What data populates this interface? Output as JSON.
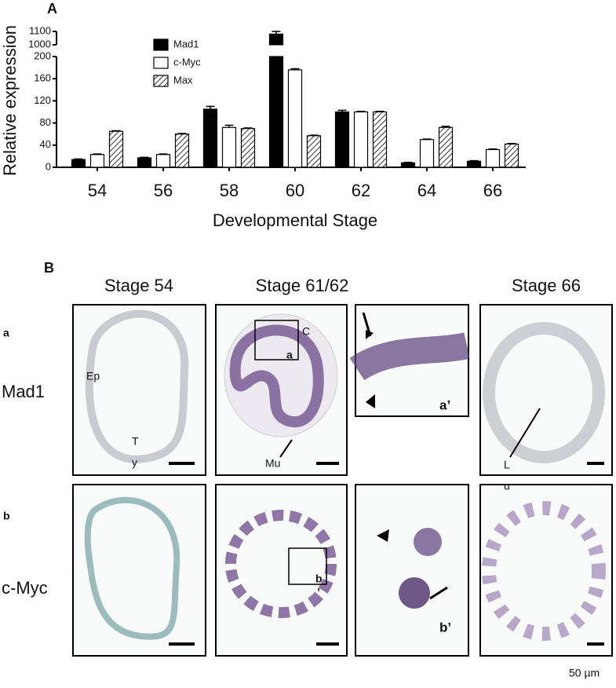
{
  "chart_data": {
    "type": "bar",
    "panel_label": "A",
    "y_label": "Relative expression",
    "x_label": "Developmental Stage",
    "categories": [
      "54",
      "56",
      "58",
      "60",
      "62",
      "64",
      "66"
    ],
    "series": [
      {
        "name": "Mad1",
        "color": "#000000",
        "values": [
          14,
          17,
          105,
          1080,
          100,
          8,
          11
        ],
        "errors": [
          1,
          1,
          5,
          20,
          3,
          1,
          1
        ]
      },
      {
        "name": "c-Myc",
        "color": "#ffffff",
        "values": [
          23,
          23,
          72,
          176,
          100,
          50,
          32
        ],
        "errors": [
          1,
          1,
          4,
          2,
          1,
          1,
          1
        ]
      },
      {
        "name": "Max",
        "color": "#ffffff",
        "hatch": true,
        "values": [
          65,
          60,
          70,
          57,
          100,
          72,
          42
        ],
        "errors": [
          1,
          1,
          1,
          1,
          1,
          2,
          1
        ]
      }
    ],
    "ylim": [
      0,
      1100
    ],
    "axis_break": [
      200,
      1000
    ],
    "yticks": [
      0,
      40,
      80,
      120,
      160,
      200,
      1000,
      1100
    ]
  },
  "panel_b": {
    "label": "B",
    "columns": [
      "Stage 54",
      "Stage 61/62",
      "Stage 66"
    ],
    "rows": [
      {
        "letter": "a",
        "gene": "Mad1"
      },
      {
        "letter": "b",
        "gene": "c-Myc"
      }
    ],
    "annotations": {
      "ep": "Ep",
      "ty1": "T",
      "ty2": "y",
      "c": "C",
      "a_box": "a",
      "mu": "Mu",
      "a_prime": "a’",
      "lu1": "L",
      "lu2": "u",
      "b_box": "b",
      "b_box2": "’",
      "b_prime": "b’"
    },
    "scale": "50 µm"
  }
}
